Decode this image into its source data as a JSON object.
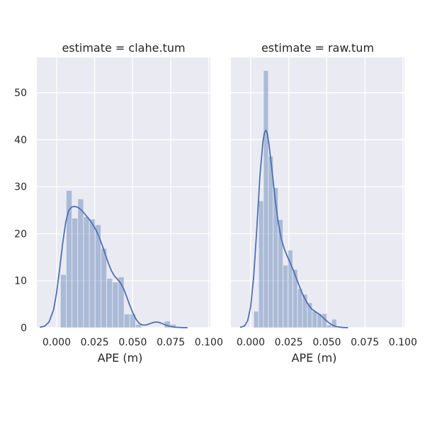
{
  "chart_data": [
    {
      "type": "bar",
      "title": "estimate = clahe.tum",
      "xlabel": "APE (m)",
      "ylabel": "",
      "xlim": [
        -0.013,
        0.101
      ],
      "ylim": [
        0,
        57.5
      ],
      "xticks": [
        "0.000",
        "0.025",
        "0.050",
        "0.075",
        "0.100"
      ],
      "yticks": [
        "0",
        "10",
        "20",
        "30",
        "40",
        "50"
      ],
      "grid": true,
      "bar_color": "#4c72b0",
      "line_color": "#4c72b0",
      "bins": [
        {
          "x0": 0.0025,
          "x1": 0.0063,
          "value": 11.3
        },
        {
          "x0": 0.0063,
          "x1": 0.0101,
          "value": 29.2
        },
        {
          "x0": 0.0101,
          "x1": 0.0139,
          "value": 23.3
        },
        {
          "x0": 0.0139,
          "x1": 0.0177,
          "value": 27.4
        },
        {
          "x0": 0.0177,
          "x1": 0.0215,
          "value": 23.6
        },
        {
          "x0": 0.0215,
          "x1": 0.0253,
          "value": 23.1
        },
        {
          "x0": 0.0253,
          "x1": 0.0291,
          "value": 21.9
        },
        {
          "x0": 0.0291,
          "x1": 0.0329,
          "value": 16.9
        },
        {
          "x0": 0.0329,
          "x1": 0.0367,
          "value": 10.5
        },
        {
          "x0": 0.0367,
          "x1": 0.0405,
          "value": 9.7
        },
        {
          "x0": 0.0405,
          "x1": 0.0443,
          "value": 10.8
        },
        {
          "x0": 0.0443,
          "x1": 0.0481,
          "value": 2.9
        },
        {
          "x0": 0.0481,
          "x1": 0.0519,
          "value": 2.9
        },
        {
          "x0": 0.0519,
          "x1": 0.0557,
          "value": 0.7
        },
        {
          "x0": 0.0557,
          "x1": 0.0595,
          "value": 0
        },
        {
          "x0": 0.0595,
          "x1": 0.0633,
          "value": 0
        },
        {
          "x0": 0.0633,
          "x1": 0.0671,
          "value": 0
        },
        {
          "x0": 0.0671,
          "x1": 0.0709,
          "value": 0
        },
        {
          "x0": 0.0709,
          "x1": 0.0747,
          "value": 1.4
        },
        {
          "x0": 0.0747,
          "x1": 0.0785,
          "value": 0.7
        }
      ],
      "kde": [
        [
          -0.011,
          0.1
        ],
        [
          -0.008,
          0.3
        ],
        [
          -0.005,
          1.2
        ],
        [
          -0.002,
          3.8
        ],
        [
          0.0,
          7.5
        ],
        [
          0.002,
          12.5
        ],
        [
          0.004,
          18.0
        ],
        [
          0.006,
          22.5
        ],
        [
          0.008,
          25.0
        ],
        [
          0.01,
          25.7
        ],
        [
          0.012,
          25.8
        ],
        [
          0.014,
          25.6
        ],
        [
          0.016,
          25.1
        ],
        [
          0.018,
          24.4
        ],
        [
          0.02,
          23.6
        ],
        [
          0.022,
          22.8
        ],
        [
          0.024,
          21.8
        ],
        [
          0.026,
          20.7
        ],
        [
          0.028,
          19.2
        ],
        [
          0.03,
          17.5
        ],
        [
          0.032,
          15.6
        ],
        [
          0.034,
          13.7
        ],
        [
          0.036,
          12.1
        ],
        [
          0.038,
          11.0
        ],
        [
          0.04,
          10.3
        ],
        [
          0.042,
          9.5
        ],
        [
          0.044,
          8.3
        ],
        [
          0.046,
          6.6
        ],
        [
          0.048,
          4.8
        ],
        [
          0.05,
          3.2
        ],
        [
          0.052,
          1.9
        ],
        [
          0.054,
          1.0
        ],
        [
          0.056,
          0.6
        ],
        [
          0.058,
          0.55
        ],
        [
          0.06,
          0.7
        ],
        [
          0.062,
          0.95
        ],
        [
          0.064,
          1.15
        ],
        [
          0.066,
          1.2
        ],
        [
          0.068,
          1.05
        ],
        [
          0.07,
          0.8
        ],
        [
          0.072,
          0.5
        ],
        [
          0.075,
          0.25
        ],
        [
          0.078,
          0.1
        ],
        [
          0.082,
          0.03
        ],
        [
          0.086,
          0.0
        ]
      ]
    },
    {
      "type": "bar",
      "title": "estimate = raw.tum",
      "xlabel": "APE (m)",
      "ylabel": "",
      "xlim": [
        -0.013,
        0.101
      ],
      "ylim": [
        0,
        57.5
      ],
      "xticks": [
        "0.000",
        "0.025",
        "0.050",
        "0.075",
        "0.100"
      ],
      "yticks": [
        "0",
        "10",
        "20",
        "30",
        "40",
        "50"
      ],
      "grid": true,
      "bar_color": "#4c72b0",
      "line_color": "#4c72b0",
      "bins": [
        {
          "x0": 0.002,
          "x1": 0.0052,
          "value": 3.5
        },
        {
          "x0": 0.0052,
          "x1": 0.0084,
          "value": 27.0
        },
        {
          "x0": 0.0084,
          "x1": 0.0116,
          "value": 54.7
        },
        {
          "x0": 0.0116,
          "x1": 0.0148,
          "value": 36.5
        },
        {
          "x0": 0.0148,
          "x1": 0.018,
          "value": 29.8
        },
        {
          "x0": 0.018,
          "x1": 0.0212,
          "value": 23.0
        },
        {
          "x0": 0.0212,
          "x1": 0.0244,
          "value": 13.3
        },
        {
          "x0": 0.0244,
          "x1": 0.0276,
          "value": 16.5
        },
        {
          "x0": 0.0276,
          "x1": 0.0308,
          "value": 12.4
        },
        {
          "x0": 0.0308,
          "x1": 0.034,
          "value": 8.3
        },
        {
          "x0": 0.034,
          "x1": 0.0372,
          "value": 7.1
        },
        {
          "x0": 0.0372,
          "x1": 0.0404,
          "value": 5.3
        },
        {
          "x0": 0.0404,
          "x1": 0.0436,
          "value": 3.5
        },
        {
          "x0": 0.0436,
          "x1": 0.0468,
          "value": 3.0
        },
        {
          "x0": 0.0468,
          "x1": 0.05,
          "value": 3.0
        },
        {
          "x0": 0.05,
          "x1": 0.0532,
          "value": 0.6
        },
        {
          "x0": 0.0532,
          "x1": 0.0564,
          "value": 1.8
        }
      ],
      "kde": [
        [
          -0.007,
          0.05
        ],
        [
          -0.004,
          0.4
        ],
        [
          -0.002,
          1.5
        ],
        [
          0.0,
          4.5
        ],
        [
          0.002,
          11.0
        ],
        [
          0.004,
          21.0
        ],
        [
          0.006,
          32.0
        ],
        [
          0.008,
          39.5
        ],
        [
          0.009,
          41.5
        ],
        [
          0.01,
          42.0
        ],
        [
          0.011,
          41.2
        ],
        [
          0.012,
          39.0
        ],
        [
          0.014,
          33.5
        ],
        [
          0.016,
          27.5
        ],
        [
          0.018,
          22.5
        ],
        [
          0.02,
          19.0
        ],
        [
          0.022,
          16.8
        ],
        [
          0.024,
          15.2
        ],
        [
          0.026,
          13.8
        ],
        [
          0.028,
          12.2
        ],
        [
          0.03,
          10.5
        ],
        [
          0.032,
          8.8
        ],
        [
          0.034,
          7.2
        ],
        [
          0.036,
          5.9
        ],
        [
          0.038,
          4.8
        ],
        [
          0.04,
          4.0
        ],
        [
          0.042,
          3.5
        ],
        [
          0.044,
          3.1
        ],
        [
          0.046,
          2.6
        ],
        [
          0.048,
          2.0
        ],
        [
          0.05,
          1.4
        ],
        [
          0.052,
          0.9
        ],
        [
          0.054,
          0.5
        ],
        [
          0.056,
          0.25
        ],
        [
          0.06,
          0.05
        ],
        [
          0.064,
          0.0
        ]
      ]
    }
  ]
}
